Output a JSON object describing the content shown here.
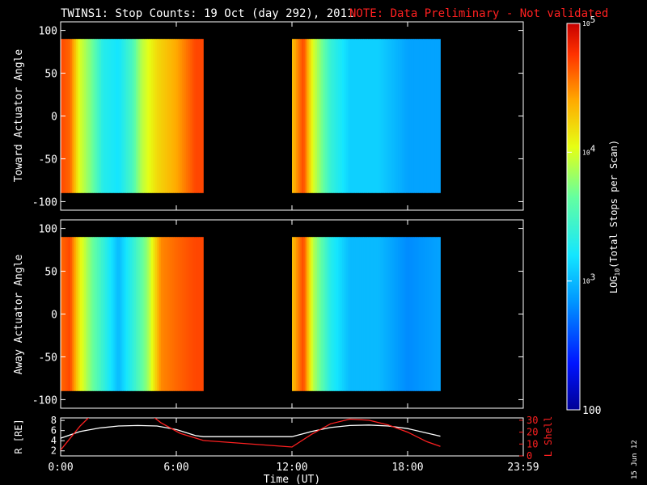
{
  "title": "TWINS1: Stop Counts: 19 Oct (day 292), 2011",
  "note": "NOTE: Data Preliminary - Not validated",
  "date_stamp": "15 Jun 12",
  "colors": {
    "background": "#000000",
    "axes": "#ffffff",
    "note": "#ff2020",
    "r_line": "#ffffff",
    "lshell_line": "#ff2020"
  },
  "colorbar": {
    "label": "LOG10(Total Stops per Scan)",
    "label_main": "LOG",
    "label_sub": "10",
    "label_rest": "(Total Stops per Scan)",
    "ticks": [
      {
        "base": "10",
        "exp": "5",
        "value": 100000
      },
      {
        "base": "10",
        "exp": "4",
        "value": 10000
      },
      {
        "base": "10",
        "exp": "3",
        "value": 1000
      },
      {
        "base": "100",
        "exp": "",
        "value": 100
      }
    ],
    "scale": "log",
    "range": [
      100,
      100000
    ]
  },
  "panels": {
    "toward": {
      "ylabel": "Toward Actuator Angle",
      "yticks": [
        "100",
        "50",
        "0",
        "-50",
        "-100"
      ]
    },
    "away": {
      "ylabel": "Away Actuator Angle",
      "yticks": [
        "100",
        "50",
        "0",
        "-50",
        "-100"
      ]
    },
    "orbit": {
      "ylabel_left": "R [RE]",
      "ylabel_right": "L Shell",
      "left_ticks": [
        "8",
        "6",
        "4",
        "2"
      ],
      "right_ticks": [
        "30",
        "20",
        "10",
        "0"
      ]
    }
  },
  "xaxis": {
    "label": "Time (UT)",
    "ticks": [
      "0:00",
      "6:00",
      "12:00",
      "18:00",
      "23:59"
    ]
  },
  "chart_data": [
    {
      "type": "heatmap",
      "name": "Toward Actuator Angle",
      "x_unit": "hours UT",
      "xlim": [
        0,
        24
      ],
      "ylim": [
        -110,
        110
      ],
      "scale": "log",
      "data_intervals": [
        [
          0,
          7.4
        ],
        [
          12,
          19.7
        ]
      ],
      "angle_range": [
        -90,
        90
      ],
      "log10_counts_profile": [
        {
          "t": 0.0,
          "v": 4.7
        },
        {
          "t": 0.5,
          "v": 4.6
        },
        {
          "t": 1.0,
          "v": 4.0
        },
        {
          "t": 1.6,
          "v": 3.7
        },
        {
          "t": 2.2,
          "v": 3.3
        },
        {
          "t": 3.0,
          "v": 3.2
        },
        {
          "t": 3.7,
          "v": 3.5
        },
        {
          "t": 4.2,
          "v": 3.9
        },
        {
          "t": 5.0,
          "v": 4.2
        },
        {
          "t": 6.0,
          "v": 4.4
        },
        {
          "t": 7.0,
          "v": 4.7
        },
        {
          "t": 7.4,
          "v": 4.7
        },
        {
          "t": 12.0,
          "v": 4.3
        },
        {
          "t": 12.6,
          "v": 4.7
        },
        {
          "t": 13.1,
          "v": 4.0
        },
        {
          "t": 14.0,
          "v": 3.4
        },
        {
          "t": 15.0,
          "v": 3.1
        },
        {
          "t": 16.5,
          "v": 3.1
        },
        {
          "t": 18.0,
          "v": 2.9
        },
        {
          "t": 19.7,
          "v": 2.9
        }
      ]
    },
    {
      "type": "heatmap",
      "name": "Away Actuator Angle",
      "x_unit": "hours UT",
      "xlim": [
        0,
        24
      ],
      "ylim": [
        -110,
        110
      ],
      "scale": "log",
      "data_intervals": [
        [
          0,
          7.4
        ],
        [
          12,
          19.7
        ]
      ],
      "angle_range": [
        -90,
        90
      ],
      "log10_counts_profile": [
        {
          "t": 0.0,
          "v": 4.6
        },
        {
          "t": 0.5,
          "v": 4.7
        },
        {
          "t": 1.0,
          "v": 4.1
        },
        {
          "t": 1.6,
          "v": 3.7
        },
        {
          "t": 2.4,
          "v": 3.3
        },
        {
          "t": 3.0,
          "v": 3.0
        },
        {
          "t": 3.8,
          "v": 3.4
        },
        {
          "t": 4.5,
          "v": 3.8
        },
        {
          "t": 5.2,
          "v": 4.5
        },
        {
          "t": 6.0,
          "v": 4.6
        },
        {
          "t": 7.0,
          "v": 4.7
        },
        {
          "t": 7.4,
          "v": 4.7
        },
        {
          "t": 12.0,
          "v": 4.3
        },
        {
          "t": 12.6,
          "v": 4.7
        },
        {
          "t": 13.1,
          "v": 3.9
        },
        {
          "t": 14.0,
          "v": 3.3
        },
        {
          "t": 15.0,
          "v": 3.0
        },
        {
          "t": 16.5,
          "v": 3.0
        },
        {
          "t": 18.0,
          "v": 2.8
        },
        {
          "t": 19.7,
          "v": 2.9
        }
      ]
    },
    {
      "type": "line",
      "name": "orbit",
      "x_unit": "hours UT",
      "xlim": [
        0,
        24
      ],
      "series": [
        {
          "name": "R [RE]",
          "axis": "left",
          "ylim": [
            1,
            8.5
          ],
          "x": [
            0,
            1,
            2,
            3,
            4,
            5,
            6,
            7,
            7.4,
            12,
            13,
            14,
            15,
            16,
            17,
            18,
            19,
            19.7
          ],
          "y": [
            4.5,
            5.8,
            6.5,
            6.9,
            7.0,
            6.9,
            6.2,
            5.0,
            4.8,
            4.8,
            5.8,
            6.6,
            7.0,
            7.1,
            6.9,
            6.4,
            5.5,
            4.9
          ]
        },
        {
          "name": "L Shell",
          "axis": "right",
          "ylim": [
            0,
            32
          ],
          "x": [
            0,
            1,
            1.5,
            4.8,
            5.2,
            6.2,
            7.4,
            12,
            13,
            14,
            15,
            16,
            17,
            18,
            19,
            19.7
          ],
          "y": [
            5,
            25,
            33,
            33,
            28,
            19,
            13,
            7.5,
            18,
            27,
            31,
            30,
            26,
            20,
            12,
            8
          ]
        }
      ]
    }
  ]
}
